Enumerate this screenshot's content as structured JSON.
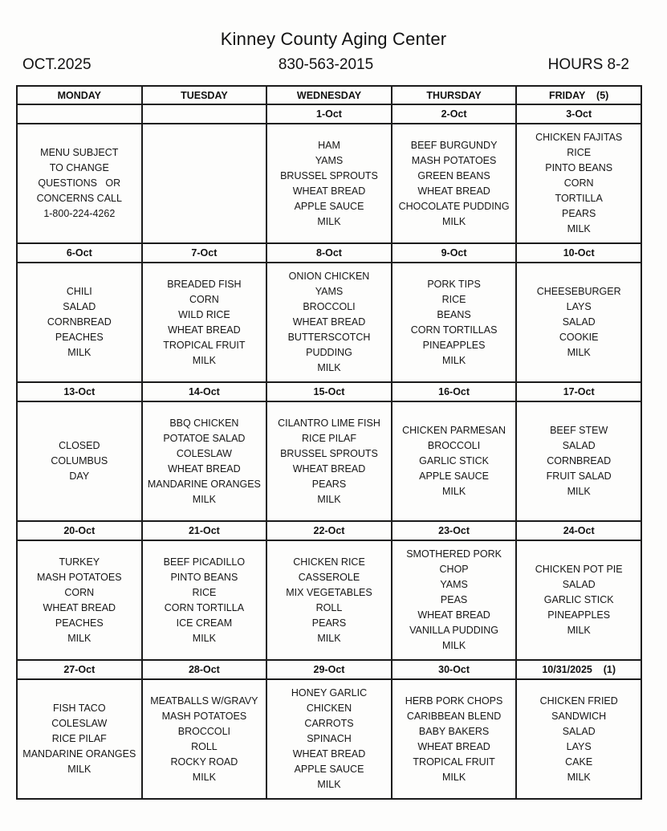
{
  "header": {
    "title": "Kinney County Aging Center",
    "month": "OCT.2025",
    "phone": "830-563-2015",
    "hours": "HOURS 8-2"
  },
  "table": {
    "day_headers": [
      "MONDAY",
      "TUESDAY",
      "WEDNESDAY",
      "THURSDAY",
      "FRIDAY    (5)"
    ],
    "weeks": [
      {
        "dates": [
          "",
          "",
          "1-Oct",
          "2-Oct",
          "3-Oct"
        ],
        "menus": [
          [
            "MENU SUBJECT",
            "TO CHANGE",
            "QUESTIONS   OR",
            "CONCERNS CALL",
            "1-800-224-4262"
          ],
          [],
          [
            "HAM",
            "YAMS",
            "BRUSSEL SPROUTS",
            "WHEAT BREAD",
            "APPLE SAUCE",
            "MILK"
          ],
          [
            "BEEF BURGUNDY",
            "MASH POTATOES",
            "GREEN BEANS",
            "WHEAT BREAD",
            "CHOCOLATE PUDDING",
            "MILK"
          ],
          [
            "CHICKEN FAJITAS",
            "RICE",
            "PINTO BEANS",
            "CORN",
            "TORTILLA",
            "PEARS",
            "MILK"
          ]
        ]
      },
      {
        "dates": [
          "6-Oct",
          "7-Oct",
          "8-Oct",
          "9-Oct",
          "10-Oct"
        ],
        "menus": [
          [
            "CHILI",
            "SALAD",
            "CORNBREAD",
            "PEACHES",
            "MILK"
          ],
          [
            "BREADED FISH",
            "CORN",
            "WILD RICE",
            "WHEAT BREAD",
            "TROPICAL FRUIT",
            "MILK"
          ],
          [
            "ONION CHICKEN",
            "YAMS",
            "BROCCOLI",
            "WHEAT BREAD",
            "BUTTERSCOTCH",
            "PUDDING",
            "MILK"
          ],
          [
            "PORK TIPS",
            "RICE",
            "BEANS",
            "CORN TORTILLAS",
            "PINEAPPLES",
            "MILK"
          ],
          [
            "CHEESEBURGER",
            "LAYS",
            "SALAD",
            "COOKIE",
            "MILK"
          ]
        ]
      },
      {
        "dates": [
          "13-Oct",
          "14-Oct",
          "15-Oct",
          "16-Oct",
          "17-Oct"
        ],
        "menus": [
          [
            "CLOSED",
            "COLUMBUS",
            "DAY"
          ],
          [
            "BBQ CHICKEN",
            "POTATOE SALAD",
            "COLESLAW",
            "WHEAT BREAD",
            "MANDARINE ORANGES",
            "MILK"
          ],
          [
            "CILANTRO LIME FISH",
            "RICE PILAF",
            "BRUSSEL SPROUTS",
            "WHEAT BREAD",
            "PEARS",
            "MILK"
          ],
          [
            "CHICKEN PARMESAN",
            "BROCCOLI",
            "GARLIC STICK",
            "APPLE SAUCE",
            "MILK"
          ],
          [
            "BEEF STEW",
            "SALAD",
            "CORNBREAD",
            "FRUIT SALAD",
            "MILK"
          ]
        ]
      },
      {
        "dates": [
          "20-Oct",
          "21-Oct",
          "22-Oct",
          "23-Oct",
          "24-Oct"
        ],
        "menus": [
          [
            "TURKEY",
            "MASH POTATOES",
            "CORN",
            "WHEAT BREAD",
            "PEACHES",
            "MILK"
          ],
          [
            "BEEF PICADILLO",
            "PINTO BEANS",
            "RICE",
            "CORN TORTILLA",
            "ICE CREAM",
            "MILK"
          ],
          [
            "CHICKEN RICE",
            "CASSEROLE",
            "MIX VEGETABLES",
            "ROLL",
            "PEARS",
            "MILK"
          ],
          [
            "SMOTHERED PORK",
            "CHOP",
            "YAMS",
            "PEAS",
            "WHEAT BREAD",
            "VANILLA PUDDING",
            "MILK"
          ],
          [
            "CHICKEN POT PIE",
            "SALAD",
            "GARLIC STICK",
            "PINEAPPLES",
            "MILK"
          ]
        ]
      },
      {
        "dates": [
          "27-Oct",
          "28-Oct",
          "29-Oct",
          "30-Oct",
          "10/31/2025    (1)"
        ],
        "menus": [
          [
            "FISH TACO",
            "COLESLAW",
            "RICE PILAF",
            "MANDARINE ORANGES",
            "MILK"
          ],
          [
            "MEATBALLS W/GRAVY",
            "MASH POTATOES",
            "BROCCOLI",
            "ROLL",
            "ROCKY ROAD",
            "MILK"
          ],
          [
            "HONEY GARLIC CHICKEN",
            "CARROTS",
            "SPINACH",
            "WHEAT BREAD",
            "APPLE SAUCE",
            "MILK"
          ],
          [
            "HERB PORK CHOPS",
            "CARIBBEAN BLEND",
            "BABY BAKERS",
            "WHEAT BREAD",
            "TROPICAL FRUIT",
            "MILK"
          ],
          [
            "CHICKEN FRIED",
            "SANDWICH",
            "SALAD",
            "LAYS",
            "CAKE",
            "MILK"
          ]
        ]
      }
    ]
  }
}
